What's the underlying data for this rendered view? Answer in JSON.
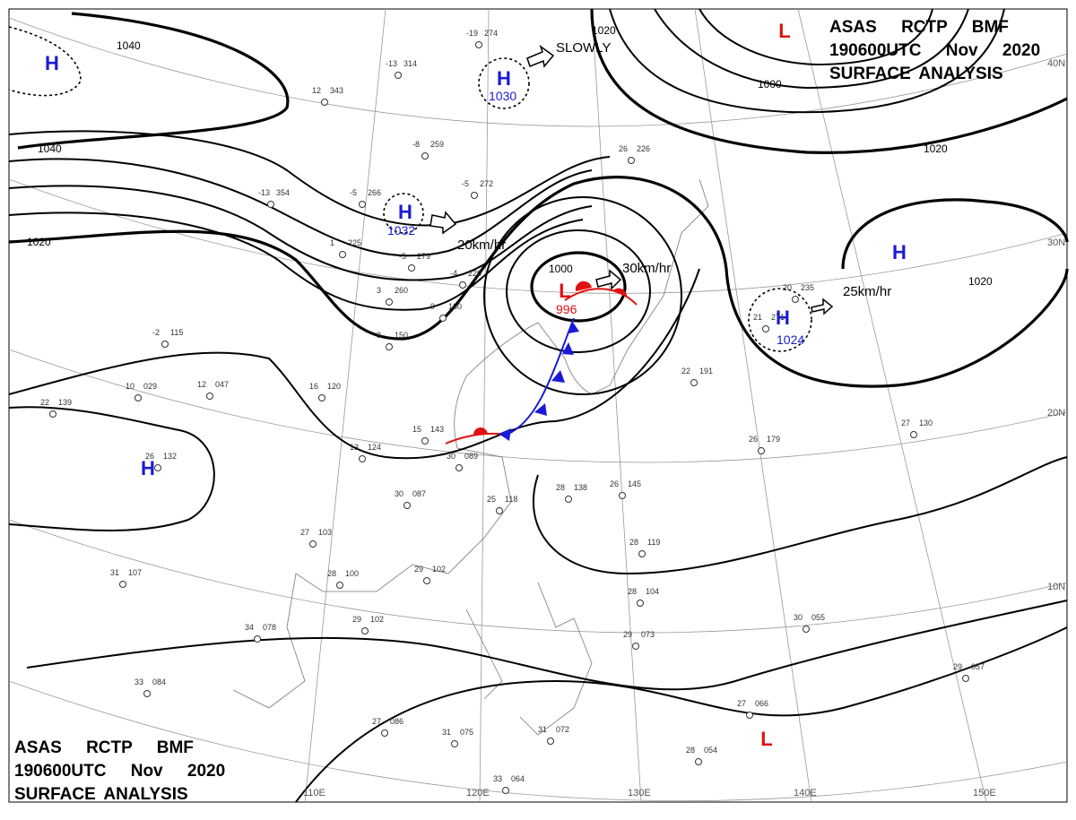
{
  "header": {
    "lines": [
      "ASAS RCTP BMF",
      "190600UTC Nov 2020",
      "SURFACE ANALYSIS"
    ]
  },
  "footer": {
    "lines": [
      "ASAS RCTP BMF",
      "190600UTC Nov 2020",
      "SURFACE ANALYSIS"
    ]
  },
  "centers": [
    {
      "type": "H",
      "pressure": null
    },
    {
      "type": "H",
      "pressure": "1030"
    },
    {
      "type": "H",
      "pressure": "1032"
    },
    {
      "type": "H",
      "pressure": "1024"
    },
    {
      "type": "H",
      "pressure": null
    },
    {
      "type": "H",
      "pressure": null
    },
    {
      "type": "L",
      "pressure": "996"
    },
    {
      "type": "L",
      "pressure": null
    },
    {
      "type": "L",
      "pressure": null
    }
  ],
  "isobar_labels": [
    "1040",
    "1040",
    "1020",
    "1000",
    "1000",
    "1020",
    "1020",
    "1020"
  ],
  "motions": [
    "SLOWLY",
    "20km/hr",
    "30km/hr",
    "25km/hr"
  ],
  "latitudes": [
    "40N",
    "30N",
    "20N",
    "10N"
  ],
  "longitudes": [
    "110E",
    "120E",
    "130E",
    "140E",
    "150E"
  ],
  "stations": [
    {
      "temp": "-19",
      "pressure": "274"
    },
    {
      "temp": "-13",
      "pressure": "314"
    },
    {
      "temp": "12",
      "pressure": "343"
    },
    {
      "temp": "-8",
      "pressure": "259"
    },
    {
      "temp": "-13",
      "pressure": "354"
    },
    {
      "temp": "-5",
      "pressure": "266"
    },
    {
      "temp": "-5",
      "pressure": "272"
    },
    {
      "temp": "1",
      "pressure": "225"
    },
    {
      "temp": "-5",
      "pressure": "279"
    },
    {
      "temp": "-4",
      "pressure": "220"
    },
    {
      "temp": "3",
      "pressure": "260"
    },
    {
      "temp": "9",
      "pressure": "160"
    },
    {
      "temp": "8",
      "pressure": "150"
    },
    {
      "temp": "-2",
      "pressure": "115"
    },
    {
      "temp": "12",
      "pressure": "047"
    },
    {
      "temp": "10",
      "pressure": "029"
    },
    {
      "temp": "22",
      "pressure": "139"
    },
    {
      "temp": "26",
      "pressure": "132"
    },
    {
      "temp": "16",
      "pressure": "120"
    },
    {
      "temp": "15",
      "pressure": "143"
    },
    {
      "temp": "13",
      "pressure": "124"
    },
    {
      "temp": "30",
      "pressure": "089"
    },
    {
      "temp": "30",
      "pressure": "087"
    },
    {
      "temp": "25",
      "pressure": "118"
    },
    {
      "temp": "28",
      "pressure": "138"
    },
    {
      "temp": "26",
      "pressure": "145"
    },
    {
      "temp": "26",
      "pressure": "179"
    },
    {
      "temp": "27",
      "pressure": "130"
    },
    {
      "temp": "27",
      "pressure": "103"
    },
    {
      "temp": "28",
      "pressure": "100"
    },
    {
      "temp": "29",
      "pressure": "102"
    },
    {
      "temp": "29",
      "pressure": "102"
    },
    {
      "temp": "34",
      "pressure": "078"
    },
    {
      "temp": "31",
      "pressure": "107"
    },
    {
      "temp": "28",
      "pressure": "119"
    },
    {
      "temp": "28",
      "pressure": "104"
    },
    {
      "temp": "29",
      "pressure": "073"
    },
    {
      "temp": "30",
      "pressure": "055"
    },
    {
      "temp": "29",
      "pressure": "057"
    },
    {
      "temp": "27",
      "pressure": "066"
    },
    {
      "temp": "28",
      "pressure": "054"
    },
    {
      "temp": "33",
      "pressure": "084"
    },
    {
      "temp": "27",
      "pressure": "086"
    },
    {
      "temp": "31",
      "pressure": "075"
    },
    {
      "temp": "33",
      "pressure": "064"
    },
    {
      "temp": "31",
      "pressure": "072"
    },
    {
      "temp": "26",
      "pressure": "226"
    },
    {
      "temp": "22",
      "pressure": "191"
    },
    {
      "temp": "20",
      "pressure": "235"
    },
    {
      "temp": "21",
      "pressure": "271"
    }
  ]
}
